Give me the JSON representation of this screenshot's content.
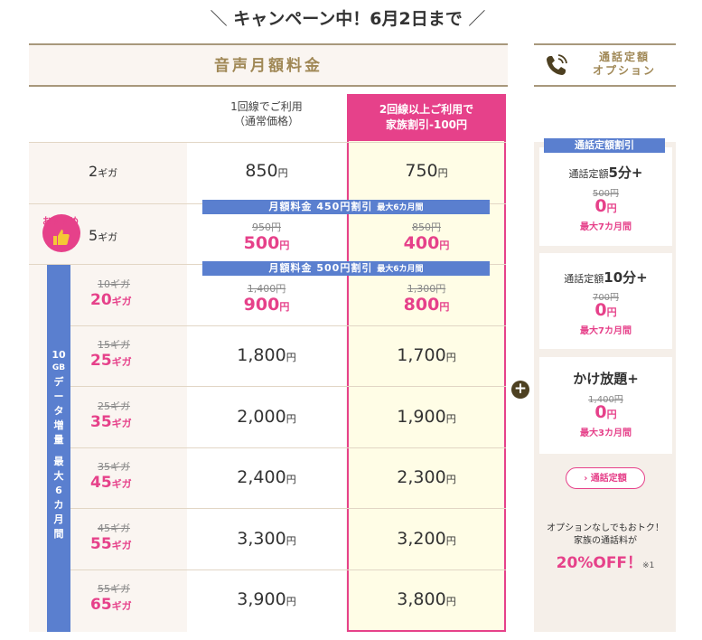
{
  "campaign": {
    "slash_left": "＼",
    "text": "キャンペーン中！6月2日まで",
    "slash_right": "／"
  },
  "header": {
    "main_title": "音声月額料金",
    "option_title_line1": "通話定額",
    "option_title_line2": "オプション"
  },
  "columns": {
    "normal_line1": "1回線でご利用",
    "normal_line2": "（通常価格）",
    "family_line1": "2回線以上ご利用で",
    "family_line2": "家族割引-100円"
  },
  "plans": [
    {
      "label": "2",
      "unit": "ギガ",
      "normal_price": "850",
      "family_price": "750",
      "yen": "円"
    },
    {
      "label": "5",
      "unit": "ギガ",
      "badge": "おすすめ",
      "normal_old": "950円",
      "normal_price": "500",
      "family_old": "850円",
      "family_price": "400",
      "yen": "円"
    },
    {
      "old_label": "10ギガ",
      "label": "20",
      "unit": "ギガ",
      "normal_old": "1,400円",
      "normal_price": "900",
      "family_old": "1,300円",
      "family_price": "800",
      "yen": "円"
    },
    {
      "old_label": "15ギガ",
      "label": "25",
      "unit": "ギガ",
      "normal_price": "1,800",
      "family_price": "1,700",
      "yen": "円"
    },
    {
      "old_label": "25ギガ",
      "label": "35",
      "unit": "ギガ",
      "normal_price": "2,000",
      "family_price": "1,900",
      "yen": "円"
    },
    {
      "old_label": "35ギガ",
      "label": "45",
      "unit": "ギガ",
      "normal_price": "2,400",
      "family_price": "2,300",
      "yen": "円"
    },
    {
      "old_label": "45ギガ",
      "label": "55",
      "unit": "ギガ",
      "normal_price": "3,300",
      "family_price": "3,200",
      "yen": "円"
    },
    {
      "old_label": "55ギガ",
      "label": "65",
      "unit": "ギガ",
      "normal_price": "3,900",
      "family_price": "3,800",
      "yen": "円"
    }
  ],
  "banners": {
    "b450_main": "月額料金 450円割引",
    "b450_small": "最大6カ月間",
    "b500_main": "月額料金 500円割引",
    "b500_small": "最大6カ月間"
  },
  "side_bar": {
    "line1": "10",
    "line2": "GB",
    "rest": "データ増量",
    "period": "最大6カ月間"
  },
  "options": {
    "tag": "通話定額割引",
    "cards": [
      {
        "name_prefix": "通話定額",
        "name_bold": "5分+",
        "old": "500円",
        "price": "0",
        "yen": "円",
        "period": "最大7カ月間"
      },
      {
        "name_prefix": "通話定額",
        "name_bold": "10分+",
        "old": "700円",
        "price": "0",
        "yen": "円",
        "period": "最大7カ月間"
      },
      {
        "name_prefix": "",
        "name_bold": "かけ放題+",
        "old": "1,400円",
        "price": "0",
        "yen": "円",
        "period": "最大3カ月間"
      }
    ],
    "link_label": "通話定額",
    "note_line1": "オプションなしでもおトク！",
    "note_line2": "家族の通話料が",
    "note_big": "20%OFF！",
    "note_ref": "※1"
  },
  "icons": {
    "phone": "phone-icon",
    "plus": "plus-icon",
    "chevron": "chevron-right-icon",
    "thumb": "thumbs-up-icon"
  },
  "colors": {
    "pink": "#e6418a",
    "blue": "#5a7fcf",
    "gold": "#a08856",
    "cream": "#faf5f1"
  }
}
